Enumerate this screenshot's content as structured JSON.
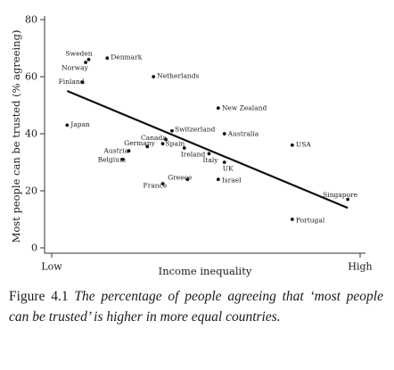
{
  "chart_data": {
    "type": "scatter",
    "xlabel": "Income inequality",
    "ylabel": "Most people can be trusted (% agreeing)",
    "x_tick_labels": [
      "Low",
      "High"
    ],
    "x_range": [
      0,
      10
    ],
    "ylim": [
      0,
      80
    ],
    "y_ticks": [
      0,
      20,
      40,
      60,
      80
    ],
    "grid": false,
    "points": [
      {
        "label": "Sweden",
        "x": 1.2,
        "y": 66
      },
      {
        "label": "Norway",
        "x": 1.1,
        "y": 65
      },
      {
        "label": "Denmark",
        "x": 1.8,
        "y": 66.5
      },
      {
        "label": "Finland",
        "x": 1.0,
        "y": 58
      },
      {
        "label": "Netherlands",
        "x": 3.3,
        "y": 60
      },
      {
        "label": "Japan",
        "x": 0.5,
        "y": 43
      },
      {
        "label": "New Zealand",
        "x": 5.4,
        "y": 49
      },
      {
        "label": "Switzerland",
        "x": 3.9,
        "y": 41
      },
      {
        "label": "Canada",
        "x": 3.7,
        "y": 38
      },
      {
        "label": "Australia",
        "x": 5.6,
        "y": 40
      },
      {
        "label": "Spain",
        "x": 3.6,
        "y": 36.5
      },
      {
        "label": "Germany",
        "x": 3.1,
        "y": 35.5
      },
      {
        "label": "Ireland",
        "x": 4.3,
        "y": 35
      },
      {
        "label": "Austria",
        "x": 2.5,
        "y": 34
      },
      {
        "label": "Italy",
        "x": 5.1,
        "y": 33
      },
      {
        "label": "USA",
        "x": 7.8,
        "y": 36
      },
      {
        "label": "Belgium",
        "x": 2.3,
        "y": 31
      },
      {
        "label": "UK",
        "x": 5.6,
        "y": 30
      },
      {
        "label": "France",
        "x": 3.6,
        "y": 22.5
      },
      {
        "label": "Greece",
        "x": 4.4,
        "y": 24
      },
      {
        "label": "Israel",
        "x": 5.4,
        "y": 24
      },
      {
        "label": "Singapore",
        "x": 9.6,
        "y": 17
      },
      {
        "label": "Portugal",
        "x": 7.8,
        "y": 10
      }
    ],
    "trend_line": {
      "x": [
        0.5,
        9.6
      ],
      "y": [
        55,
        14
      ]
    }
  },
  "caption": {
    "number": "Figure 4.1",
    "text": "The percentage of people agreeing that ‘most people can be trusted’ is higher in more equal countries."
  }
}
